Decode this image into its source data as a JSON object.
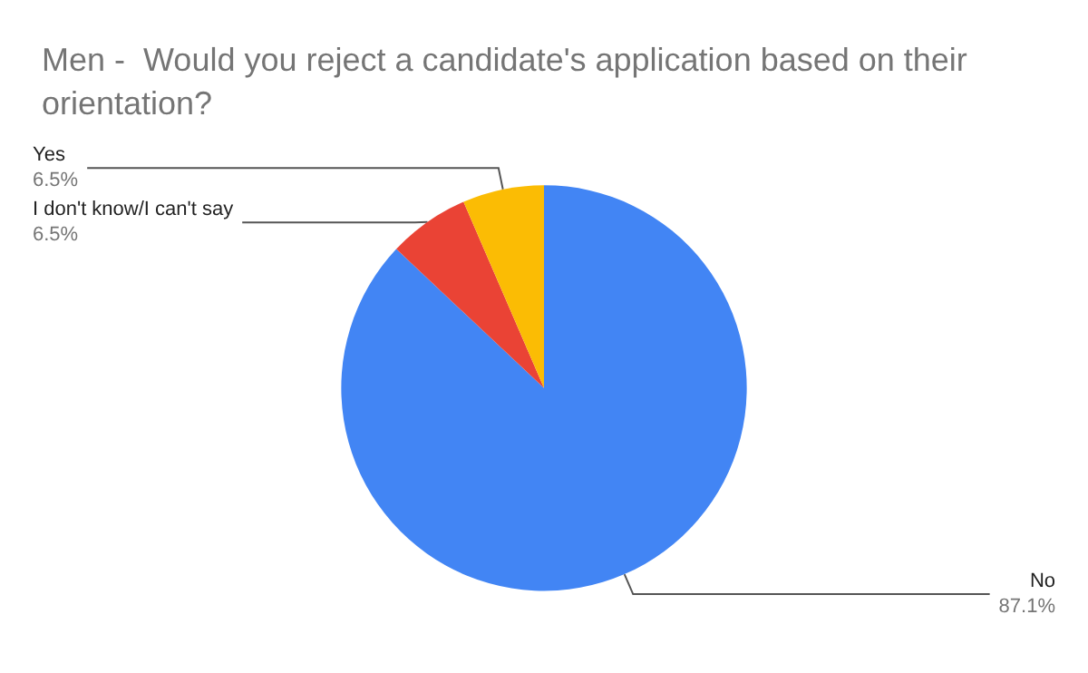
{
  "chart_data": {
    "type": "pie",
    "title": "Men -  Would you reject a candidate's application based on their orientation?",
    "categories": [
      "No",
      "I don't know/I can't say",
      "Yes"
    ],
    "values": [
      87.1,
      6.5,
      6.5
    ],
    "value_labels": [
      "87.1%",
      "6.5%",
      "6.5%"
    ],
    "colors": [
      "#4285f4",
      "#ea4335",
      "#fbbc04"
    ],
    "legend": false
  }
}
